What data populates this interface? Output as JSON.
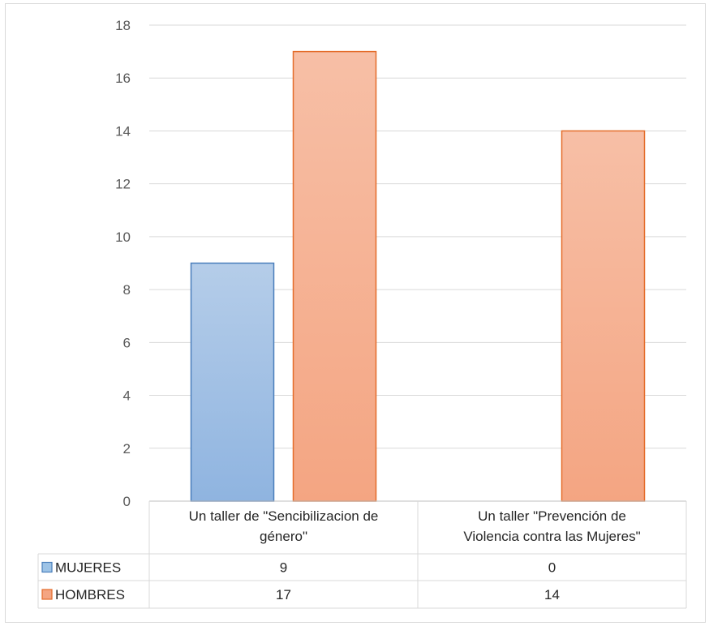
{
  "chart_data": {
    "type": "bar",
    "categories": [
      [
        "Un taller de \"Sencibilizacion de",
        "género\""
      ],
      [
        "Un taller \"Prevención de",
        "Violencia contra las Mujeres\""
      ]
    ],
    "series": [
      {
        "name": "MUJERES",
        "values": [
          9,
          0
        ],
        "color": "#9dc3e6",
        "stroke": "#4a7ebb",
        "grad_top": "#b5cde9",
        "grad_bottom": "#8fb4e0"
      },
      {
        "name": "HOMBRES",
        "values": [
          17,
          14
        ],
        "color": "#f4a582",
        "stroke": "#e46c2a",
        "grad_top": "#f7bfa6",
        "grad_bottom": "#f4a582"
      }
    ],
    "ylim": [
      0,
      18
    ],
    "yticks": [
      0,
      2,
      4,
      6,
      8,
      10,
      12,
      14,
      16,
      18
    ],
    "grid": true,
    "data_table": true,
    "legend": "data-table-keys",
    "title": "",
    "xlabel": "",
    "ylabel": ""
  }
}
